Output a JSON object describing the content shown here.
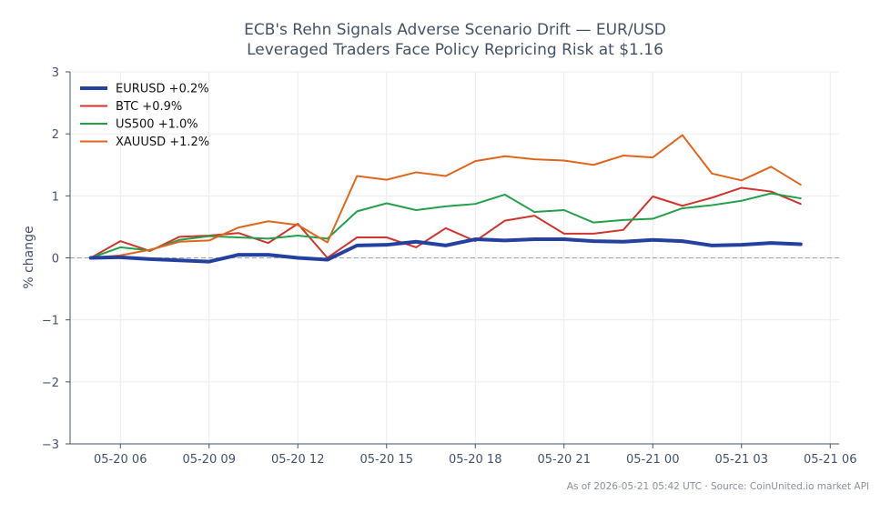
{
  "chart_data": {
    "type": "line",
    "title": "ECB's Rehn Signals Adverse Scenario Drift — EUR/USD",
    "subtitle": "Leveraged Traders Face Policy Repricing Risk at $1.16",
    "ylabel": "% change",
    "xlabel": "",
    "ylim": [
      -3,
      3
    ],
    "yticks": [
      -3,
      -2,
      -1,
      0,
      1,
      2,
      3
    ],
    "ytick_labels": [
      "−3",
      "−2",
      "−1",
      "0",
      "1",
      "2",
      "3"
    ],
    "xlim": [
      4.3,
      30.3
    ],
    "xticks": [
      6,
      9,
      12,
      15,
      18,
      21,
      24,
      27,
      30
    ],
    "xtick_labels": [
      "05-20 06",
      "05-20 09",
      "05-20 12",
      "05-20 15",
      "05-20 18",
      "05-20 21",
      "05-21 00",
      "05-21 03",
      "05-21 06"
    ],
    "grid": true,
    "zero_line": true,
    "legend_position": "top-left",
    "x": [
      5,
      6,
      7,
      8,
      9,
      10,
      11,
      12,
      13,
      14,
      15,
      16,
      17,
      18,
      19,
      20,
      21,
      22,
      23,
      24,
      25,
      26,
      27,
      28,
      29
    ],
    "series": [
      {
        "name": "EURUSD +0.2%",
        "color": "#2541a0",
        "values": [
          0.0,
          0.01,
          -0.02,
          -0.04,
          -0.06,
          0.05,
          0.05,
          0.0,
          -0.03,
          0.2,
          0.21,
          0.26,
          0.2,
          0.3,
          0.28,
          0.3,
          0.3,
          0.27,
          0.26,
          0.29,
          0.27,
          0.2,
          0.21,
          0.24,
          0.22
        ]
      },
      {
        "name": "BTC +0.9%",
        "color": "#d0342c",
        "values": [
          0.0,
          0.27,
          0.11,
          0.34,
          0.36,
          0.4,
          0.24,
          0.55,
          0.0,
          0.33,
          0.33,
          0.17,
          0.48,
          0.27,
          0.6,
          0.68,
          0.39,
          0.39,
          0.45,
          0.99,
          0.84,
          0.97,
          1.13,
          1.07,
          0.87
        ]
      },
      {
        "name": "US500 +1.0%",
        "color": "#22a04b",
        "values": [
          0.0,
          0.17,
          0.12,
          0.29,
          0.35,
          0.33,
          0.31,
          0.36,
          0.31,
          0.75,
          0.88,
          0.77,
          0.83,
          0.87,
          1.02,
          0.74,
          0.77,
          0.57,
          0.61,
          0.63,
          0.8,
          0.85,
          0.92,
          1.04,
          0.96
        ]
      },
      {
        "name": "XAUUSD +1.2%",
        "color": "#e0651c",
        "values": [
          0.0,
          0.04,
          0.13,
          0.26,
          0.28,
          0.49,
          0.59,
          0.53,
          0.25,
          1.32,
          1.26,
          1.38,
          1.32,
          1.56,
          1.64,
          1.59,
          1.57,
          1.5,
          1.65,
          1.62,
          1.98,
          1.36,
          1.25,
          1.47,
          1.18
        ]
      }
    ],
    "footer": "As of 2026-05-21 05:42 UTC · Source: CoinUnited.io market API"
  }
}
